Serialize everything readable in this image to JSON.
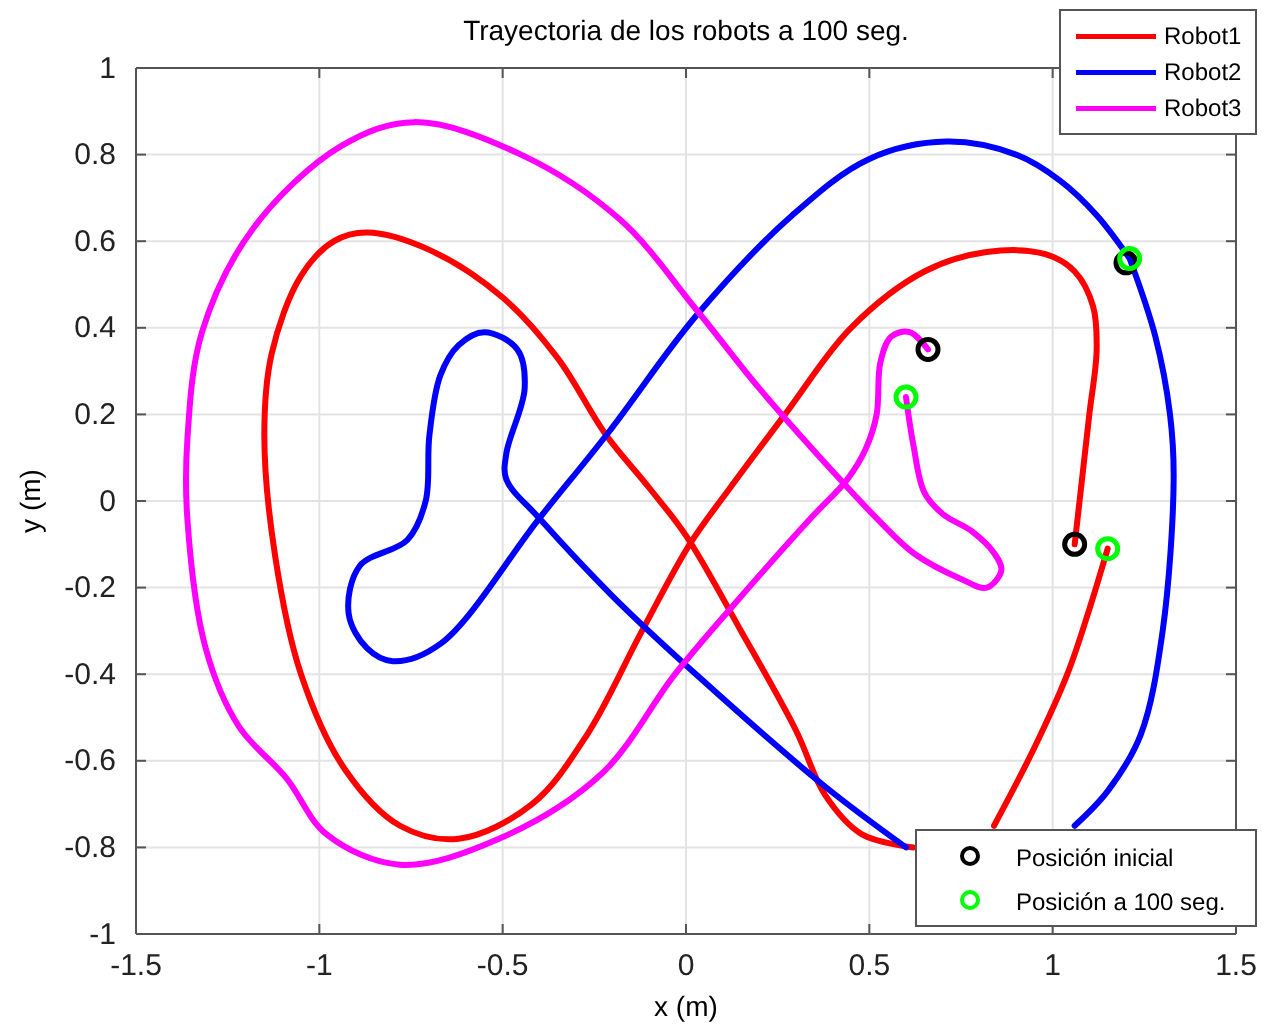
{
  "chart_data": {
    "type": "line",
    "title": "Trayectoria de los robots a 100 seg.",
    "xlabel": "x (m)",
    "ylabel": "y (m)",
    "xlim": [
      -1.5,
      1.5
    ],
    "ylim": [
      -1,
      1
    ],
    "xticks": [
      -1.5,
      -1,
      -0.5,
      0,
      0.5,
      1,
      1.5
    ],
    "yticks": [
      -1,
      -0.8,
      -0.6,
      -0.4,
      -0.2,
      0,
      0.2,
      0.4,
      0.6,
      0.8,
      1
    ],
    "grid": true,
    "legend": "top right",
    "series": [
      {
        "name": "Robot1",
        "color": "#ff0000",
        "x": [
          1.06,
          1.08,
          1.1,
          1.12,
          1.11,
          1.06,
          0.98,
          0.82,
          0.65,
          0.45,
          0.27,
          0.12,
          0.01,
          -0.12,
          -0.27,
          -0.42,
          -0.62,
          -0.78,
          -0.93,
          -1.05,
          -1.12,
          -1.15,
          -1.13,
          -1.05,
          -0.96,
          -0.87,
          -0.7,
          -0.5,
          -0.35,
          -0.22,
          -0.1,
          0.0,
          0.15,
          0.3,
          0.38,
          0.48,
          0.62,
          0.75,
          0.84,
          0.95,
          1.04,
          1.1,
          1.15
        ],
        "values": [
          -0.1,
          0.05,
          0.2,
          0.35,
          0.45,
          0.53,
          0.57,
          0.575,
          0.53,
          0.4,
          0.2,
          0.03,
          -0.1,
          -0.3,
          -0.54,
          -0.7,
          -0.78,
          -0.75,
          -0.62,
          -0.4,
          -0.13,
          0.15,
          0.34,
          0.52,
          0.6,
          0.62,
          0.58,
          0.47,
          0.33,
          0.155,
          0.03,
          -0.08,
          -0.3,
          -0.53,
          -0.68,
          -0.77,
          -0.8,
          null,
          -0.75,
          -0.57,
          -0.4,
          -0.25,
          -0.11
        ]
      },
      {
        "name": "Robot2",
        "color": "#0000ff",
        "x": [
          1.21,
          1.28,
          1.32,
          1.33,
          1.3,
          1.24,
          1.15,
          1.06,
          0.9,
          0.72,
          0.6,
          0.38,
          0.04,
          -0.2,
          -0.4,
          -0.49,
          -0.49,
          -0.44,
          -0.46,
          -0.55,
          -0.62,
          -0.67,
          -0.7,
          -0.71,
          -0.76,
          -0.89,
          -0.92,
          -0.87,
          -0.8,
          -0.67,
          -0.4,
          -0.21,
          0.03,
          0.29,
          0.5,
          0.71,
          0.9,
          1.02,
          1.12,
          1.21
        ],
        "values": [
          0.56,
          0.38,
          0.2,
          0.05,
          -0.3,
          -0.54,
          -0.67,
          -0.75,
          null,
          null,
          -0.8,
          -0.66,
          -0.41,
          -0.22,
          -0.04,
          0.05,
          0.11,
          0.26,
          0.35,
          0.39,
          0.36,
          0.29,
          0.15,
          0.0,
          -0.09,
          -0.15,
          -0.26,
          -0.34,
          -0.37,
          -0.33,
          -0.04,
          0.16,
          0.43,
          0.66,
          0.79,
          0.83,
          0.8,
          0.74,
          0.66,
          0.56
        ]
      },
      {
        "name": "Robot3",
        "color": "#ff00ff",
        "x": [
          0.66,
          0.61,
          0.56,
          0.53,
          0.52,
          0.49,
          0.44,
          0.34,
          0.13,
          -0.03,
          -0.23,
          -0.51,
          -0.78,
          -0.98,
          -1.09,
          -1.22,
          -1.31,
          -1.36,
          -1.36,
          -1.32,
          -1.18,
          -0.94,
          -0.74,
          -0.45,
          -0.18,
          0.03,
          0.2,
          0.42,
          0.52,
          0.62,
          0.75,
          0.82,
          0.86,
          0.84,
          0.78,
          0.7,
          0.65,
          0.62,
          0.6
        ],
        "values": [
          0.35,
          0.39,
          0.38,
          0.32,
          0.2,
          0.12,
          0.05,
          -0.04,
          -0.24,
          -0.4,
          -0.63,
          -0.78,
          -0.84,
          -0.77,
          -0.64,
          -0.52,
          -0.34,
          -0.04,
          0.14,
          0.39,
          0.63,
          0.82,
          0.875,
          0.8,
          0.65,
          0.44,
          0.26,
          0.05,
          -0.04,
          -0.12,
          -0.18,
          -0.2,
          -0.16,
          -0.12,
          -0.07,
          -0.03,
          0.02,
          0.13,
          0.24
        ]
      },
      {
        "name": "Posición inicial",
        "type": "scatter",
        "marker": "circle",
        "color": "#000000",
        "x": [
          1.06,
          1.2,
          0.66
        ],
        "values": [
          -0.1,
          0.55,
          0.35
        ]
      },
      {
        "name": "Posición a 100 seg.",
        "type": "scatter",
        "marker": "circle",
        "color": "#00ff00",
        "x": [
          1.15,
          1.21,
          0.6
        ],
        "values": [
          -0.11,
          0.56,
          0.24
        ]
      }
    ]
  }
}
